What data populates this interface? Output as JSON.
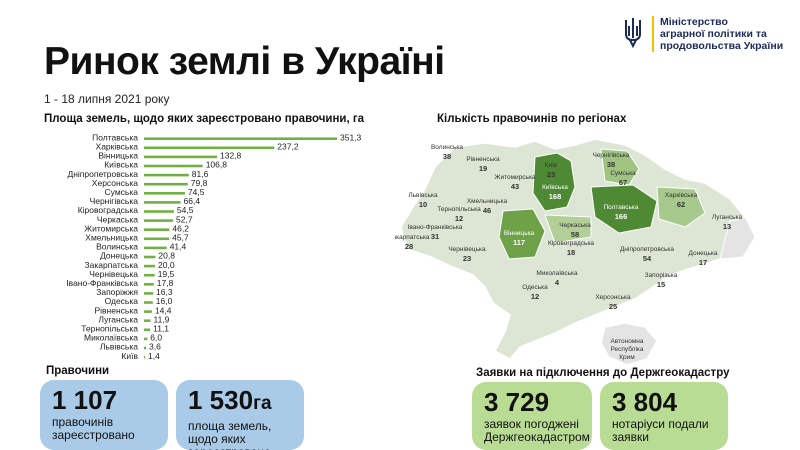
{
  "header": {
    "ministry_lines": [
      "Міністерство",
      "аграрної політики та",
      "продовольства України"
    ],
    "title": "Ринок землі в Україні",
    "period": "1 - 18 липня 2021 року"
  },
  "colors": {
    "bar": "#72b043",
    "card_blue": "#a9cbe8",
    "card_green": "#b9dc95",
    "ministry_yellow": "#f2c200",
    "ministry_blue": "#1b2a5a"
  },
  "chart_data": [
    {
      "type": "bar",
      "orientation": "horizontal",
      "title": "Площа земель, щодо яких зареєстровано правочини, га",
      "categories": [
        "Полтавська",
        "Харківська",
        "Вінницька",
        "Київська",
        "Дніпропетровська",
        "Херсонська",
        "Сумська",
        "Чернігівська",
        "Кіровоградська",
        "Черкаська",
        "Житомирська",
        "Хмельницька",
        "Волинська",
        "Донецька",
        "Закарпатська",
        "Чернівецька",
        "Івано-Франківська",
        "Запоріжжя",
        "Одеська",
        "Рівненська",
        "Луганська",
        "Тернопільська",
        "Миколаївська",
        "Львівська",
        "Київ"
      ],
      "values": [
        351.3,
        237.2,
        132.8,
        106.8,
        81.6,
        79.8,
        74.5,
        66.4,
        54.5,
        52.7,
        46.2,
        45.7,
        41.4,
        20.8,
        20.0,
        19.5,
        17.8,
        16.3,
        16.0,
        14.4,
        11.9,
        11.1,
        6.0,
        3.6,
        1.4
      ],
      "value_labels": [
        "351,3",
        "237,2",
        "132,8",
        "106,8",
        "81,6",
        "79,8",
        "74,5",
        "66,4",
        "54,5",
        "52,7",
        "46,2",
        "45,7",
        "41,4",
        "20,8",
        "20,0",
        "19,5",
        "17,8",
        "16,3",
        "16,0",
        "14,4",
        "11,9",
        "11,1",
        "6,0",
        "3,6",
        "1,4"
      ],
      "xlim": [
        0,
        351.3
      ]
    },
    {
      "type": "heatmap",
      "title": "Кількість правочинів по регіонах",
      "regions": [
        {
          "name": "Волинська",
          "value": 38
        },
        {
          "name": "Рівненська",
          "value": 19
        },
        {
          "name": "Житомирська",
          "value": 43
        },
        {
          "name": "Київська",
          "value": 168
        },
        {
          "name": "Київ",
          "value": 23
        },
        {
          "name": "Чернігівська",
          "value": 38
        },
        {
          "name": "Сумська",
          "value": 67
        },
        {
          "name": "Полтавська",
          "value": 166
        },
        {
          "name": "Харківська",
          "value": 62
        },
        {
          "name": "Луганська",
          "value": 13
        },
        {
          "name": "Львівська",
          "value": 10
        },
        {
          "name": "Тернопільська",
          "value": 12
        },
        {
          "name": "Хмельницька",
          "value": 46
        },
        {
          "name": "Вінницька",
          "value": 117
        },
        {
          "name": "Черкаська",
          "value": 58
        },
        {
          "name": "Дніпропетровська",
          "value": 54
        },
        {
          "name": "Донецька",
          "value": 17
        },
        {
          "name": "Закарпатська",
          "value": 28
        },
        {
          "name": "Івано-Франківська",
          "value": 31
        },
        {
          "name": "Чернівецька",
          "value": 23
        },
        {
          "name": "Кіровоградська",
          "value": 18
        },
        {
          "name": "Миколаївська",
          "value": 4
        },
        {
          "name": "Запорізька",
          "value": 15
        },
        {
          "name": "Одеська",
          "value": 12
        },
        {
          "name": "Херсонська",
          "value": 25
        },
        {
          "name": "Автономна Республіка Крим",
          "value": null
        }
      ]
    }
  ],
  "stats": {
    "transactions_label": "Правочини",
    "transactions_count": "1 107",
    "transactions_desc": "правочинів зареєстровано",
    "area_value": "1 530",
    "area_unit": "га",
    "area_desc": "площа земель, щодо яких зареєстровано правочини",
    "applications_label": "Заявки на підключення до Держгеокадастру",
    "approved_count": "3 729",
    "approved_desc": "заявок погоджені Держгеокадастром",
    "notary_count": "3 804",
    "notary_desc": "нотаріуси подали заявки"
  }
}
